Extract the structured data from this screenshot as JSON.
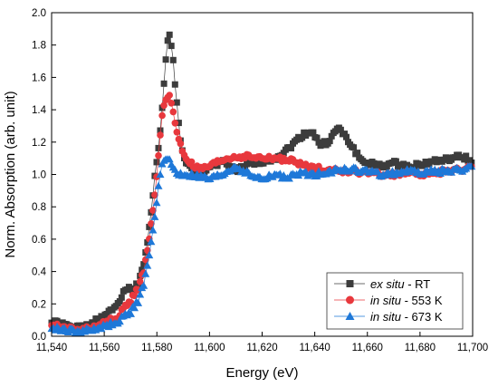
{
  "chart_data": {
    "type": "scatter",
    "xlabel": "Energy (eV)",
    "ylabel": "Norm. Absorption (arb. unit)",
    "xlim": [
      11540,
      11700
    ],
    "ylim": [
      0.0,
      2.0
    ],
    "x_ticks": [
      "11,540",
      "11,560",
      "11,580",
      "11,600",
      "11,620",
      "11,640",
      "11,660",
      "11,680",
      "11,700"
    ],
    "y_ticks": [
      "0.0",
      "0.2",
      "0.4",
      "0.6",
      "0.8",
      "1.0",
      "1.2",
      "1.4",
      "1.6",
      "1.8",
      "2.0"
    ],
    "grid": false,
    "legend_position": "bottom-right",
    "series": [
      {
        "key": "ex_situ",
        "name": "ex situ - RT",
        "label_italic": "ex situ",
        "label_rest": " - RT",
        "color": "#3c3c3c",
        "marker": "square",
        "step": 0.7,
        "anchors": [
          [
            11540,
            0.09
          ],
          [
            11545,
            0.07
          ],
          [
            11550,
            0.05
          ],
          [
            11555,
            0.08
          ],
          [
            11560,
            0.12
          ],
          [
            11565,
            0.2
          ],
          [
            11568,
            0.3
          ],
          [
            11571,
            0.28
          ],
          [
            11573,
            0.34
          ],
          [
            11575,
            0.45
          ],
          [
            11577,
            0.65
          ],
          [
            11579,
            0.95
          ],
          [
            11580.5,
            1.15
          ],
          [
            11582,
            1.4
          ],
          [
            11583,
            1.62
          ],
          [
            11584,
            1.83
          ],
          [
            11585,
            1.86
          ],
          [
            11586,
            1.75
          ],
          [
            11587.5,
            1.45
          ],
          [
            11589,
            1.2
          ],
          [
            11591,
            1.07
          ],
          [
            11594,
            1.02
          ],
          [
            11597,
            1.01
          ],
          [
            11600,
            1.05
          ],
          [
            11605,
            1.08
          ],
          [
            11610,
            1.02
          ],
          [
            11615,
            1.06
          ],
          [
            11620,
            1.08
          ],
          [
            11625,
            1.1
          ],
          [
            11630,
            1.16
          ],
          [
            11635,
            1.24
          ],
          [
            11639,
            1.27
          ],
          [
            11642,
            1.18
          ],
          [
            11645,
            1.2
          ],
          [
            11649,
            1.29
          ],
          [
            11653,
            1.2
          ],
          [
            11658,
            1.08
          ],
          [
            11665,
            1.05
          ],
          [
            11670,
            1.07
          ],
          [
            11675,
            1.05
          ],
          [
            11680,
            1.06
          ],
          [
            11685,
            1.08
          ],
          [
            11690,
            1.09
          ],
          [
            11695,
            1.11
          ],
          [
            11698,
            1.1
          ],
          [
            11700,
            1.06
          ]
        ]
      },
      {
        "key": "in_situ_553",
        "name": "in situ - 553 K",
        "label_italic": "in situ",
        "label_rest": " - 553 K",
        "color": "#e8383d",
        "marker": "circle",
        "step": 0.7,
        "anchors": [
          [
            11540,
            0.07
          ],
          [
            11545,
            0.05
          ],
          [
            11550,
            0.04
          ],
          [
            11555,
            0.05
          ],
          [
            11560,
            0.08
          ],
          [
            11565,
            0.12
          ],
          [
            11570,
            0.22
          ],
          [
            11573,
            0.3
          ],
          [
            11575,
            0.4
          ],
          [
            11577,
            0.58
          ],
          [
            11579,
            0.85
          ],
          [
            11580.5,
            1.1
          ],
          [
            11582,
            1.35
          ],
          [
            11583,
            1.46
          ],
          [
            11584,
            1.49
          ],
          [
            11585,
            1.48
          ],
          [
            11586,
            1.4
          ],
          [
            11587,
            1.3
          ],
          [
            11589,
            1.18
          ],
          [
            11591,
            1.1
          ],
          [
            11594,
            1.05
          ],
          [
            11597,
            1.03
          ],
          [
            11600,
            1.05
          ],
          [
            11605,
            1.09
          ],
          [
            11610,
            1.11
          ],
          [
            11615,
            1.11
          ],
          [
            11620,
            1.1
          ],
          [
            11625,
            1.1
          ],
          [
            11630,
            1.09
          ],
          [
            11635,
            1.06
          ],
          [
            11640,
            1.04
          ],
          [
            11645,
            1.03
          ],
          [
            11650,
            1.02
          ],
          [
            11655,
            1.02
          ],
          [
            11660,
            1.01
          ],
          [
            11665,
            1.0
          ],
          [
            11670,
            1.0
          ],
          [
            11675,
            1.01
          ],
          [
            11680,
            1.0
          ],
          [
            11685,
            1.01
          ],
          [
            11690,
            1.02
          ],
          [
            11695,
            1.03
          ],
          [
            11700,
            1.04
          ]
        ]
      },
      {
        "key": "in_situ_673",
        "name": "in situ - 673 K",
        "label_italic": "in situ",
        "label_rest": " - 673 K",
        "color": "#1e78d8",
        "marker": "triangle",
        "step": 0.7,
        "anchors": [
          [
            11540,
            0.05
          ],
          [
            11545,
            0.04
          ],
          [
            11550,
            0.03
          ],
          [
            11555,
            0.04
          ],
          [
            11560,
            0.06
          ],
          [
            11565,
            0.09
          ],
          [
            11570,
            0.15
          ],
          [
            11573,
            0.22
          ],
          [
            11575,
            0.32
          ],
          [
            11577,
            0.48
          ],
          [
            11579,
            0.72
          ],
          [
            11580.5,
            0.92
          ],
          [
            11582,
            1.05
          ],
          [
            11583,
            1.1
          ],
          [
            11584,
            1.11
          ],
          [
            11585,
            1.08
          ],
          [
            11586,
            1.04
          ],
          [
            11588,
            1.0
          ],
          [
            11590,
            1.0
          ],
          [
            11595,
            0.99
          ],
          [
            11600,
            0.97
          ],
          [
            11605,
            1.0
          ],
          [
            11610,
            1.05
          ],
          [
            11615,
            1.0
          ],
          [
            11620,
            0.97
          ],
          [
            11625,
            1.0
          ],
          [
            11630,
            0.98
          ],
          [
            11635,
            1.01
          ],
          [
            11640,
            1.0
          ],
          [
            11645,
            1.02
          ],
          [
            11650,
            1.03
          ],
          [
            11655,
            1.03
          ],
          [
            11660,
            1.02
          ],
          [
            11665,
            1.0
          ],
          [
            11670,
            1.01
          ],
          [
            11675,
            1.02
          ],
          [
            11680,
            1.01
          ],
          [
            11685,
            1.02
          ],
          [
            11690,
            1.02
          ],
          [
            11695,
            1.03
          ],
          [
            11700,
            1.04
          ]
        ]
      }
    ]
  }
}
